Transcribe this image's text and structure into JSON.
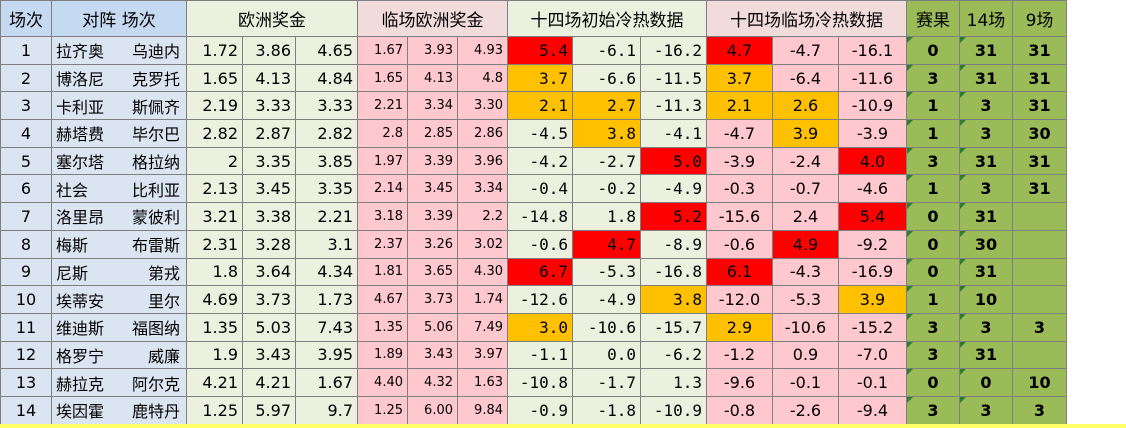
{
  "header": {
    "num": "场次",
    "match": "对阵  场次",
    "euro": "欧洲奖金",
    "euro_late": "临场欧洲奖金",
    "cold_init": "十四场初始冷热数据",
    "cold_late": "十四场临场冷热数据",
    "result": "赛果",
    "r14": "14场",
    "r9": "9场"
  },
  "rows": [
    {
      "n": "1",
      "home": "拉齐奥",
      "away": "乌迪内",
      "e": [
        "1.72",
        "3.86",
        "4.65"
      ],
      "l": [
        "1.67",
        "3.93",
        "4.93"
      ],
      "ci": [
        "5.4",
        "-6.1",
        "-16.2"
      ],
      "cl": [
        "4.7",
        "-4.7",
        "-16.1"
      ],
      "res": "0",
      "r14": "31",
      "r9": "31"
    },
    {
      "n": "2",
      "home": "博洛尼",
      "away": "克罗托",
      "e": [
        "1.65",
        "4.13",
        "4.84"
      ],
      "l": [
        "1.65",
        "4.13",
        "4.8"
      ],
      "ci": [
        "3.7",
        "-6.6",
        "-11.5"
      ],
      "cl": [
        "3.7",
        "-6.4",
        "-11.6"
      ],
      "res": "3",
      "r14": "31",
      "r9": "31"
    },
    {
      "n": "3",
      "home": "卡利亚",
      "away": "斯佩齐",
      "e": [
        "2.19",
        "3.33",
        "3.33"
      ],
      "l": [
        "2.21",
        "3.34",
        "3.30"
      ],
      "ci": [
        "2.1",
        "2.7",
        "-11.3"
      ],
      "cl": [
        "2.1",
        "2.6",
        "-10.9"
      ],
      "res": "1",
      "r14": "3",
      "r9": "31"
    },
    {
      "n": "4",
      "home": "赫塔费",
      "away": "毕尔巴",
      "e": [
        "2.82",
        "2.87",
        "2.82"
      ],
      "l": [
        "2.8",
        "2.85",
        "2.86"
      ],
      "ci": [
        "-4.5",
        "3.8",
        "-4.1"
      ],
      "cl": [
        "-4.7",
        "3.9",
        "-3.9"
      ],
      "res": "1",
      "r14": "3",
      "r9": "30"
    },
    {
      "n": "5",
      "home": "塞尔塔",
      "away": "格拉纳",
      "e": [
        "2",
        "3.35",
        "3.85"
      ],
      "l": [
        "1.97",
        "3.39",
        "3.96"
      ],
      "ci": [
        "-4.2",
        "-2.7",
        "5.0"
      ],
      "cl": [
        "-3.9",
        "-2.4",
        "4.0"
      ],
      "res": "3",
      "r14": "31",
      "r9": "31"
    },
    {
      "n": "6",
      "home": "社会",
      "away": "比利亚",
      "e": [
        "2.13",
        "3.45",
        "3.35"
      ],
      "l": [
        "2.14",
        "3.45",
        "3.34"
      ],
      "ci": [
        "-0.4",
        "-0.2",
        "-4.9"
      ],
      "cl": [
        "-0.3",
        "-0.7",
        "-4.6"
      ],
      "res": "1",
      "r14": "3",
      "r9": "31"
    },
    {
      "n": "7",
      "home": "洛里昂",
      "away": "蒙彼利",
      "e": [
        "3.21",
        "3.38",
        "2.21"
      ],
      "l": [
        "3.18",
        "3.39",
        "2.2"
      ],
      "ci": [
        "-14.8",
        "1.8",
        "5.2"
      ],
      "cl": [
        "-15.6",
        "2.4",
        "5.4"
      ],
      "res": "0",
      "r14": "31",
      "r9": ""
    },
    {
      "n": "8",
      "home": "梅斯",
      "away": "布雷斯",
      "e": [
        "2.31",
        "3.28",
        "3.1"
      ],
      "l": [
        "2.37",
        "3.26",
        "3.02"
      ],
      "ci": [
        "-0.6",
        "4.7",
        "-8.9"
      ],
      "cl": [
        "-0.6",
        "4.9",
        "-9.2"
      ],
      "res": "0",
      "r14": "30",
      "r9": ""
    },
    {
      "n": "9",
      "home": "尼斯",
      "away": "第戎",
      "e": [
        "1.8",
        "3.64",
        "4.34"
      ],
      "l": [
        "1.81",
        "3.65",
        "4.30"
      ],
      "ci": [
        "6.7",
        "-5.3",
        "-16.8"
      ],
      "cl": [
        "6.1",
        "-4.3",
        "-16.9"
      ],
      "res": "0",
      "r14": "31",
      "r9": ""
    },
    {
      "n": "10",
      "home": "埃蒂安",
      "away": "里尔",
      "e": [
        "4.69",
        "3.73",
        "1.73"
      ],
      "l": [
        "4.67",
        "3.73",
        "1.74"
      ],
      "ci": [
        "-12.6",
        "-4.9",
        "3.8"
      ],
      "cl": [
        "-12.0",
        "-5.3",
        "3.9"
      ],
      "res": "1",
      "r14": "10",
      "r9": ""
    },
    {
      "n": "11",
      "home": "维迪斯",
      "away": "福图纳",
      "e": [
        "1.35",
        "5.03",
        "7.43"
      ],
      "l": [
        "1.35",
        "5.06",
        "7.49"
      ],
      "ci": [
        "3.0",
        "-10.6",
        "-15.7"
      ],
      "cl": [
        "2.9",
        "-10.6",
        "-15.2"
      ],
      "res": "3",
      "r14": "3",
      "r9": "3"
    },
    {
      "n": "12",
      "home": "格罗宁",
      "away": "威廉",
      "e": [
        "1.9",
        "3.43",
        "3.95"
      ],
      "l": [
        "1.89",
        "3.43",
        "3.97"
      ],
      "ci": [
        "-1.1",
        "0.0",
        "-6.2"
      ],
      "cl": [
        "-1.2",
        "0.9",
        "-7.0"
      ],
      "res": "3",
      "r14": "31",
      "r9": ""
    },
    {
      "n": "13",
      "home": "赫拉克",
      "away": "阿尔克",
      "e": [
        "4.21",
        "4.21",
        "1.67"
      ],
      "l": [
        "4.40",
        "4.32",
        "1.63"
      ],
      "ci": [
        "-10.8",
        "-1.7",
        "1.3"
      ],
      "cl": [
        "-9.6",
        "-0.1",
        "-0.1"
      ],
      "res": "0",
      "r14": "0",
      "r9": "10"
    },
    {
      "n": "14",
      "home": "埃因霍",
      "away": "鹿特丹",
      "e": [
        "1.25",
        "5.97",
        "9.7"
      ],
      "l": [
        "1.25",
        "6.00",
        "9.84"
      ],
      "ci": [
        "-0.9",
        "-1.8",
        "-10.9"
      ],
      "cl": [
        "-0.8",
        "-2.6",
        "-9.4"
      ],
      "res": "3",
      "r14": "3",
      "r9": "3"
    }
  ],
  "highlight": {
    "red_init": [
      [
        0,
        0
      ],
      [
        4,
        2
      ],
      [
        6,
        2
      ],
      [
        7,
        1
      ],
      [
        8,
        0
      ]
    ],
    "orange_init": [
      [
        1,
        0
      ],
      [
        2,
        0
      ],
      [
        2,
        1
      ],
      [
        3,
        1
      ],
      [
        9,
        2
      ],
      [
        10,
        0
      ]
    ],
    "red_late": [
      [
        0,
        0
      ],
      [
        4,
        2
      ],
      [
        6,
        2
      ],
      [
        7,
        1
      ],
      [
        8,
        0
      ]
    ],
    "orange_late": [
      [
        1,
        0
      ],
      [
        2,
        0
      ],
      [
        2,
        1
      ],
      [
        3,
        1
      ],
      [
        9,
        2
      ],
      [
        10,
        0
      ]
    ]
  },
  "colors": {
    "red": "#ff0000",
    "orange": "#ffc000",
    "pink": "#ffc7ce",
    "green": "#ebf1de",
    "blue": "#dbe5f1",
    "result_green": "#9bbb59"
  }
}
